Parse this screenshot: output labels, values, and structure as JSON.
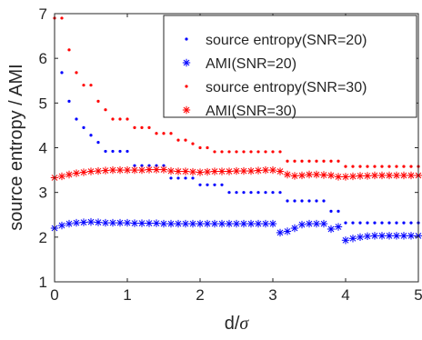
{
  "chart_data": {
    "type": "scatter",
    "xlabel_prefix": "d/",
    "xlabel_symbol": "σ",
    "ylabel": "source entropy / AMI",
    "xlim": [
      0,
      5
    ],
    "ylim": [
      1,
      7
    ],
    "xticks": [
      "0",
      "1",
      "2",
      "3",
      "4",
      "5"
    ],
    "yticks": [
      "1",
      "2",
      "3",
      "4",
      "5",
      "6",
      "7"
    ],
    "legend_position": "top-right",
    "series": [
      {
        "name": "source entropy(SNR=20)",
        "marker": "dot",
        "color": "#0000ff",
        "points": [
          [
            0.1,
            5.68
          ],
          [
            0.2,
            5.04
          ],
          [
            0.3,
            4.64
          ],
          [
            0.4,
            4.45
          ],
          [
            0.5,
            4.28
          ],
          [
            0.6,
            4.12
          ],
          [
            0.7,
            3.92
          ],
          [
            0.8,
            3.92
          ],
          [
            0.9,
            3.92
          ],
          [
            1.0,
            3.92
          ],
          [
            1.1,
            3.6
          ],
          [
            1.2,
            3.6
          ],
          [
            1.3,
            3.6
          ],
          [
            1.4,
            3.6
          ],
          [
            1.5,
            3.6
          ],
          [
            1.6,
            3.32
          ],
          [
            1.7,
            3.32
          ],
          [
            1.8,
            3.32
          ],
          [
            1.9,
            3.32
          ],
          [
            2.0,
            3.17
          ],
          [
            2.1,
            3.17
          ],
          [
            2.2,
            3.17
          ],
          [
            2.3,
            3.17
          ],
          [
            2.4,
            3.0
          ],
          [
            2.5,
            3.0
          ],
          [
            2.6,
            3.0
          ],
          [
            2.7,
            3.0
          ],
          [
            2.8,
            3.0
          ],
          [
            2.9,
            3.0
          ],
          [
            3.0,
            3.0
          ],
          [
            3.1,
            3.0
          ],
          [
            3.2,
            2.81
          ],
          [
            3.3,
            2.81
          ],
          [
            3.4,
            2.81
          ],
          [
            3.5,
            2.81
          ],
          [
            3.6,
            2.81
          ],
          [
            3.7,
            2.81
          ],
          [
            3.8,
            2.58
          ],
          [
            3.9,
            2.58
          ],
          [
            4.0,
            2.32
          ],
          [
            4.1,
            2.32
          ],
          [
            4.2,
            2.32
          ],
          [
            4.3,
            2.32
          ],
          [
            4.4,
            2.32
          ],
          [
            4.5,
            2.32
          ],
          [
            4.6,
            2.32
          ],
          [
            4.7,
            2.32
          ],
          [
            4.8,
            2.32
          ],
          [
            4.9,
            2.32
          ],
          [
            5.0,
            2.32
          ]
        ]
      },
      {
        "name": "AMI(SNR=20)",
        "marker": "asterisk",
        "color": "#0000ff",
        "points": [
          [
            0.0,
            2.2
          ],
          [
            0.1,
            2.26
          ],
          [
            0.2,
            2.3
          ],
          [
            0.3,
            2.32
          ],
          [
            0.4,
            2.33
          ],
          [
            0.5,
            2.34
          ],
          [
            0.6,
            2.33
          ],
          [
            0.7,
            2.32
          ],
          [
            0.8,
            2.32
          ],
          [
            0.9,
            2.32
          ],
          [
            1.0,
            2.32
          ],
          [
            1.1,
            2.31
          ],
          [
            1.2,
            2.31
          ],
          [
            1.3,
            2.31
          ],
          [
            1.4,
            2.31
          ],
          [
            1.5,
            2.3
          ],
          [
            1.6,
            2.3
          ],
          [
            1.7,
            2.3
          ],
          [
            1.8,
            2.3
          ],
          [
            1.9,
            2.3
          ],
          [
            2.0,
            2.3
          ],
          [
            2.1,
            2.3
          ],
          [
            2.2,
            2.3
          ],
          [
            2.3,
            2.3
          ],
          [
            2.4,
            2.3
          ],
          [
            2.5,
            2.3
          ],
          [
            2.6,
            2.3
          ],
          [
            2.7,
            2.3
          ],
          [
            2.8,
            2.3
          ],
          [
            2.9,
            2.3
          ],
          [
            3.0,
            2.3
          ],
          [
            3.1,
            2.1
          ],
          [
            3.2,
            2.13
          ],
          [
            3.3,
            2.2
          ],
          [
            3.4,
            2.28
          ],
          [
            3.5,
            2.3
          ],
          [
            3.6,
            2.3
          ],
          [
            3.7,
            2.3
          ],
          [
            3.8,
            2.18
          ],
          [
            3.9,
            2.23
          ],
          [
            4.0,
            1.93
          ],
          [
            4.1,
            1.97
          ],
          [
            4.2,
            2.0
          ],
          [
            4.3,
            2.02
          ],
          [
            4.4,
            2.03
          ],
          [
            4.5,
            2.03
          ],
          [
            4.6,
            2.03
          ],
          [
            4.7,
            2.03
          ],
          [
            4.8,
            2.03
          ],
          [
            4.9,
            2.03
          ],
          [
            5.0,
            2.03
          ]
        ]
      },
      {
        "name": "source entropy(SNR=30)",
        "marker": "dot",
        "color": "#ff0000",
        "points": [
          [
            0.0,
            6.9
          ],
          [
            0.1,
            6.9
          ],
          [
            0.2,
            6.19
          ],
          [
            0.3,
            5.68
          ],
          [
            0.4,
            5.4
          ],
          [
            0.5,
            5.4
          ],
          [
            0.6,
            5.04
          ],
          [
            0.7,
            4.85
          ],
          [
            0.8,
            4.64
          ],
          [
            0.9,
            4.64
          ],
          [
            1.0,
            4.64
          ],
          [
            1.1,
            4.45
          ],
          [
            1.2,
            4.45
          ],
          [
            1.3,
            4.45
          ],
          [
            1.4,
            4.32
          ],
          [
            1.5,
            4.32
          ],
          [
            1.6,
            4.32
          ],
          [
            1.7,
            4.17
          ],
          [
            1.8,
            4.17
          ],
          [
            1.9,
            4.09
          ],
          [
            2.0,
            4.0
          ],
          [
            2.1,
            4.0
          ],
          [
            2.2,
            3.91
          ],
          [
            2.3,
            3.91
          ],
          [
            2.4,
            3.91
          ],
          [
            2.5,
            3.91
          ],
          [
            2.6,
            3.91
          ],
          [
            2.7,
            3.91
          ],
          [
            2.8,
            3.91
          ],
          [
            2.9,
            3.91
          ],
          [
            3.0,
            3.91
          ],
          [
            3.1,
            3.91
          ],
          [
            3.2,
            3.7
          ],
          [
            3.3,
            3.7
          ],
          [
            3.4,
            3.7
          ],
          [
            3.5,
            3.7
          ],
          [
            3.6,
            3.7
          ],
          [
            3.7,
            3.7
          ],
          [
            3.8,
            3.7
          ],
          [
            3.9,
            3.7
          ],
          [
            4.0,
            3.58
          ],
          [
            4.1,
            3.58
          ],
          [
            4.2,
            3.58
          ],
          [
            4.3,
            3.58
          ],
          [
            4.4,
            3.58
          ],
          [
            4.5,
            3.58
          ],
          [
            4.6,
            3.58
          ],
          [
            4.7,
            3.58
          ],
          [
            4.8,
            3.58
          ],
          [
            4.9,
            3.58
          ],
          [
            5.0,
            3.58
          ]
        ]
      },
      {
        "name": "AMI(SNR=30)",
        "marker": "asterisk",
        "color": "#ff0000",
        "points": [
          [
            0.0,
            3.33
          ],
          [
            0.1,
            3.36
          ],
          [
            0.2,
            3.4
          ],
          [
            0.3,
            3.43
          ],
          [
            0.4,
            3.45
          ],
          [
            0.5,
            3.47
          ],
          [
            0.6,
            3.48
          ],
          [
            0.7,
            3.49
          ],
          [
            0.8,
            3.5
          ],
          [
            0.9,
            3.5
          ],
          [
            1.0,
            3.5
          ],
          [
            1.1,
            3.5
          ],
          [
            1.2,
            3.5
          ],
          [
            1.3,
            3.51
          ],
          [
            1.4,
            3.51
          ],
          [
            1.5,
            3.51
          ],
          [
            1.6,
            3.48
          ],
          [
            1.7,
            3.47
          ],
          [
            1.8,
            3.47
          ],
          [
            1.9,
            3.46
          ],
          [
            2.0,
            3.45
          ],
          [
            2.1,
            3.46
          ],
          [
            2.2,
            3.47
          ],
          [
            2.3,
            3.47
          ],
          [
            2.4,
            3.47
          ],
          [
            2.5,
            3.48
          ],
          [
            2.6,
            3.48
          ],
          [
            2.7,
            3.48
          ],
          [
            2.8,
            3.49
          ],
          [
            2.9,
            3.5
          ],
          [
            3.0,
            3.5
          ],
          [
            3.1,
            3.47
          ],
          [
            3.2,
            3.4
          ],
          [
            3.3,
            3.37
          ],
          [
            3.4,
            3.38
          ],
          [
            3.5,
            3.4
          ],
          [
            3.6,
            3.4
          ],
          [
            3.7,
            3.39
          ],
          [
            3.8,
            3.38
          ],
          [
            3.9,
            3.35
          ],
          [
            4.0,
            3.35
          ],
          [
            4.1,
            3.36
          ],
          [
            4.2,
            3.37
          ],
          [
            4.3,
            3.37
          ],
          [
            4.4,
            3.38
          ],
          [
            4.5,
            3.38
          ],
          [
            4.6,
            3.38
          ],
          [
            4.7,
            3.38
          ],
          [
            4.8,
            3.38
          ],
          [
            4.9,
            3.38
          ],
          [
            5.0,
            3.38
          ]
        ]
      }
    ]
  }
}
